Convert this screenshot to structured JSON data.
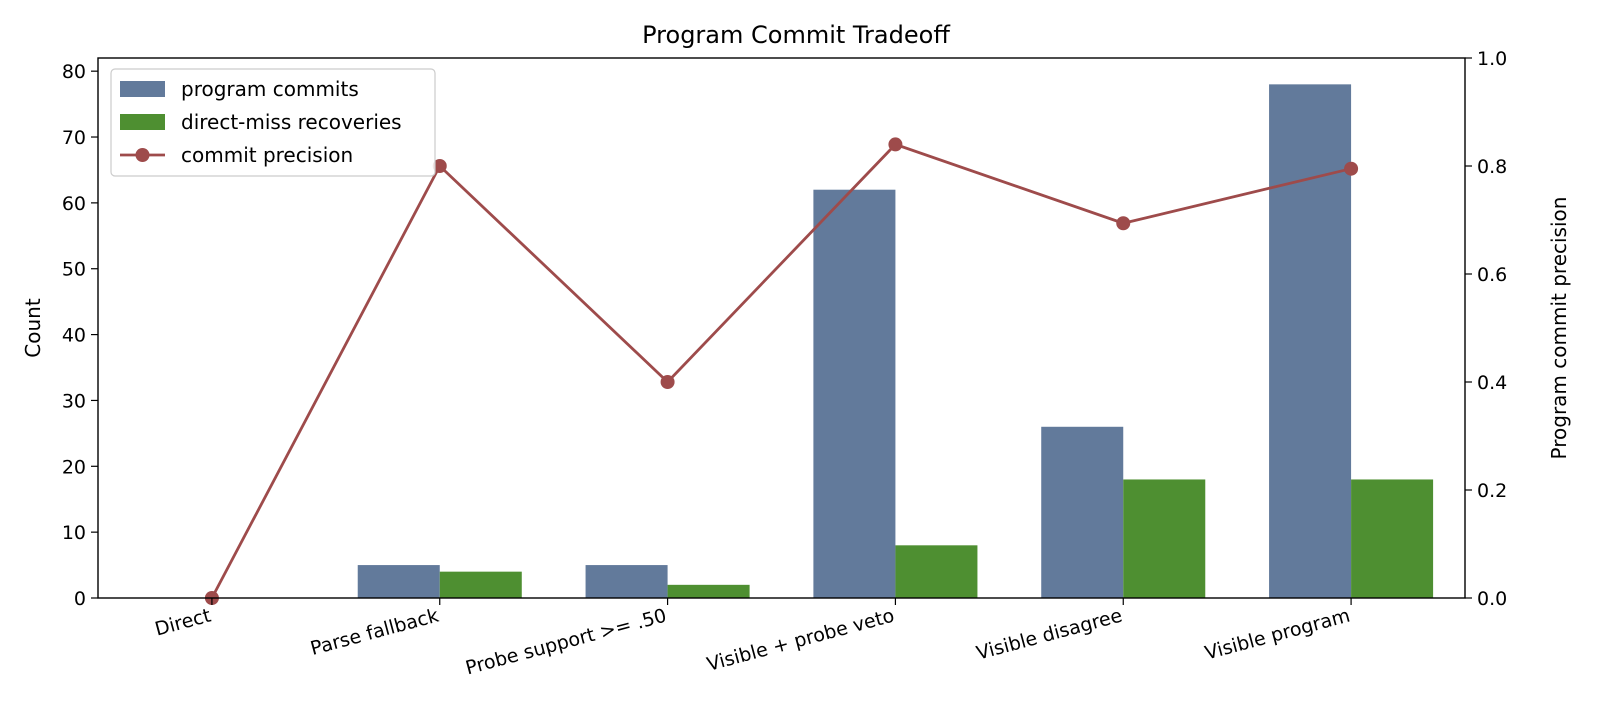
{
  "chart_data": {
    "type": "bar",
    "title": "Program Commit Tradeoff",
    "categories": [
      "Direct",
      "Parse fallback",
      "Probe support >= .50",
      "Visible + probe veto",
      "Visible disagree",
      "Visible program"
    ],
    "series": [
      {
        "name": "program commits",
        "axis": "left",
        "kind": "bar",
        "color": "#627a9b",
        "values": [
          0,
          5,
          5,
          62,
          26,
          78
        ]
      },
      {
        "name": "direct-miss recoveries",
        "axis": "left",
        "kind": "bar",
        "color": "#4e8f31",
        "values": [
          0,
          4,
          2,
          8,
          18,
          18
        ]
      },
      {
        "name": "commit precision",
        "axis": "right",
        "kind": "line",
        "color": "#9e4b4b",
        "values": [
          0.0,
          0.8,
          0.4,
          0.84,
          0.694,
          0.795
        ]
      }
    ],
    "ylabel": "Count",
    "ylim": [
      0,
      82
    ],
    "yticks": [
      0,
      10,
      20,
      30,
      40,
      50,
      60,
      70,
      80
    ],
    "y2label": "Program commit precision",
    "y2lim": [
      0,
      1.0
    ],
    "y2ticks": [
      "0.0",
      "0.2",
      "0.4",
      "0.6",
      "0.8",
      "1.0"
    ],
    "legend_position": "top-left",
    "grid": false
  }
}
